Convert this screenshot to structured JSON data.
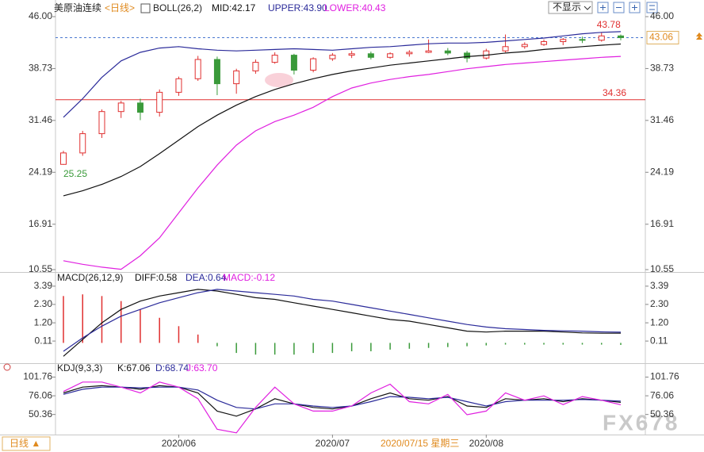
{
  "header": {
    "title": "美原油连续",
    "period": "<日线>",
    "dropdown": "不显示",
    "period_button": "日线 ▲"
  },
  "watermark": "FX678",
  "chart_data": [
    {
      "type": "candlestick",
      "indicator": "BOLL(26,2)",
      "categories": [
        null,
        null,
        null,
        null,
        null,
        null,
        "2020/06",
        null,
        null,
        null,
        null,
        null,
        null,
        null,
        "2020/07",
        null,
        null,
        null,
        null,
        null,
        null,
        null,
        "2020/08",
        null,
        null,
        null,
        null,
        null,
        null,
        null
      ],
      "open": [
        25.3,
        26.9,
        29.6,
        32.7,
        33.9,
        32.6,
        35.4,
        37.3,
        40.0,
        36.6,
        38.4,
        39.6,
        40.6,
        38.5,
        40.1,
        40.6,
        40.8,
        40.3,
        40.8,
        41.0,
        41.2,
        40.9,
        40.2,
        41.2,
        41.8,
        42.1,
        42.5,
        42.8,
        42.7,
        43.3
      ],
      "high": [
        27.2,
        30.0,
        33.0,
        34.2,
        34.5,
        35.8,
        37.6,
        40.5,
        40.4,
        38.7,
        40.0,
        41.0,
        40.8,
        40.3,
        40.9,
        41.2,
        41.1,
        41.0,
        41.3,
        42.8,
        41.6,
        41.2,
        41.5,
        43.5,
        42.4,
        42.8,
        43.0,
        43.2,
        43.78,
        43.5
      ],
      "low": [
        25.25,
        26.5,
        29.0,
        31.8,
        31.5,
        32.0,
        34.9,
        37.0,
        35.0,
        35.2,
        38.0,
        39.4,
        37.9,
        38.2,
        39.8,
        40.2,
        40.0,
        40.1,
        40.4,
        40.9,
        40.6,
        39.6,
        40.0,
        41.0,
        41.5,
        41.9,
        42.0,
        42.3,
        42.5,
        42.7
      ],
      "close": [
        26.9,
        29.6,
        32.7,
        33.9,
        32.6,
        35.4,
        37.3,
        40.0,
        36.6,
        38.4,
        39.6,
        40.6,
        38.5,
        40.1,
        40.6,
        40.8,
        40.3,
        40.8,
        41.0,
        41.2,
        40.9,
        40.2,
        41.2,
        41.8,
        42.1,
        42.5,
        42.8,
        42.7,
        43.3,
        43.06
      ],
      "up_color": "#e03030",
      "down_color": "#3a9a3a",
      "series": [
        {
          "name": "MID:42.17",
          "color": "#111111",
          "values": [
            20.9,
            21.6,
            22.5,
            23.6,
            25.0,
            26.8,
            28.7,
            30.6,
            32.2,
            33.6,
            34.8,
            35.8,
            36.6,
            37.3,
            37.9,
            38.4,
            38.8,
            39.2,
            39.5,
            39.8,
            40.1,
            40.4,
            40.6,
            40.9,
            41.1,
            41.4,
            41.6,
            41.8,
            42.0,
            42.17
          ]
        },
        {
          "name": "UPPER:43.90",
          "color": "#2b2b9a",
          "values": [
            31.9,
            34.5,
            37.5,
            39.8,
            41.0,
            41.6,
            41.8,
            41.5,
            41.3,
            41.2,
            41.3,
            41.4,
            41.5,
            41.4,
            41.3,
            41.5,
            41.7,
            41.8,
            42.0,
            42.2,
            42.3,
            42.3,
            42.4,
            42.6,
            42.8,
            43.0,
            43.3,
            43.6,
            43.8,
            43.9
          ]
        },
        {
          "name": "LOWER:40.43",
          "color": "#e020e0",
          "values": [
            11.8,
            11.3,
            10.9,
            10.6,
            12.5,
            15.0,
            18.5,
            22.0,
            25.2,
            28.0,
            30.0,
            31.3,
            32.2,
            33.3,
            34.8,
            36.0,
            36.7,
            37.2,
            37.6,
            37.9,
            38.3,
            38.7,
            39.0,
            39.3,
            39.5,
            39.7,
            39.9,
            40.1,
            40.3,
            40.43
          ]
        }
      ],
      "low_label": 25.25,
      "high_label": 43.78,
      "support_line": 34.36,
      "last_price": 43.06,
      "cursor_label": "2020/07/15 星期三",
      "ylim": [
        10.55,
        46
      ],
      "yticks": [
        {
          "value": 46,
          "label": "46.00"
        },
        38.73,
        31.46,
        24.19,
        16.91,
        10.55
      ]
    },
    {
      "type": "macd",
      "title": "MACD(26,12,9)",
      "series": [
        {
          "name": "DIFF:0.58",
          "color": "#111111",
          "values": [
            -0.8,
            0.2,
            1.2,
            2.0,
            2.5,
            2.8,
            3.0,
            3.2,
            3.1,
            2.9,
            2.7,
            2.6,
            2.4,
            2.2,
            2.0,
            1.8,
            1.6,
            1.4,
            1.3,
            1.1,
            0.9,
            0.7,
            0.65,
            0.7,
            0.7,
            0.7,
            0.65,
            0.6,
            0.58,
            0.58
          ]
        },
        {
          "name": "DEA:0.64",
          "color": "#2b2b9a",
          "values": [
            -0.5,
            0.3,
            1.0,
            1.6,
            2.0,
            2.4,
            2.7,
            3.0,
            3.2,
            3.1,
            3.0,
            2.9,
            2.8,
            2.6,
            2.5,
            2.3,
            2.1,
            1.9,
            1.7,
            1.5,
            1.3,
            1.1,
            0.95,
            0.85,
            0.8,
            0.75,
            0.72,
            0.7,
            0.66,
            0.64
          ]
        }
      ],
      "histogram": {
        "name": "MACD:-0.12",
        "color": "#e020e0",
        "up_color": "#e03030",
        "down_color": "#3a9a3a",
        "values": [
          2.8,
          2.9,
          2.8,
          2.5,
          2.0,
          1.5,
          1.0,
          0.5,
          -0.2,
          -0.6,
          -0.7,
          -0.7,
          -0.7,
          -0.6,
          -0.6,
          -0.5,
          -0.5,
          -0.4,
          -0.35,
          -0.3,
          -0.25,
          -0.2,
          -0.15,
          -0.1,
          -0.1,
          -0.1,
          -0.1,
          -0.1,
          -0.1,
          -0.12
        ]
      },
      "ylim": [
        -1.07,
        4.0
      ],
      "yticks": [
        3.39,
        {
          "value": 2.3,
          "label": "2.30"
        },
        {
          "value": 1.2,
          "label": "1.20"
        },
        0.11
      ]
    },
    {
      "type": "kdj",
      "title": "KDJ(9,3,3)",
      "series": [
        {
          "name": "K:67.06",
          "color": "#111111",
          "values": [
            80,
            88,
            90,
            88,
            85,
            90,
            88,
            80,
            55,
            48,
            58,
            72,
            65,
            60,
            58,
            62,
            72,
            80,
            72,
            70,
            75,
            62,
            60,
            72,
            70,
            72,
            68,
            72,
            70,
            67.06
          ]
        },
        {
          "name": "D:68.74",
          "color": "#2b2b9a",
          "values": [
            78,
            85,
            88,
            88,
            87,
            88,
            88,
            84,
            70,
            60,
            58,
            65,
            65,
            62,
            60,
            62,
            68,
            75,
            74,
            72,
            74,
            68,
            62,
            68,
            70,
            70,
            70,
            71,
            70,
            68.74
          ]
        },
        {
          "name": "J:63.70",
          "color": "#e020e0",
          "values": [
            82,
            95,
            95,
            88,
            80,
            95,
            88,
            72,
            30,
            25,
            60,
            88,
            65,
            55,
            55,
            62,
            80,
            92,
            68,
            65,
            78,
            50,
            55,
            80,
            70,
            76,
            64,
            75,
            70,
            63.7
          ]
        }
      ],
      "ylim": [
        26,
        110
      ],
      "yticks": [
        101.76,
        76.06,
        50.36
      ]
    }
  ]
}
